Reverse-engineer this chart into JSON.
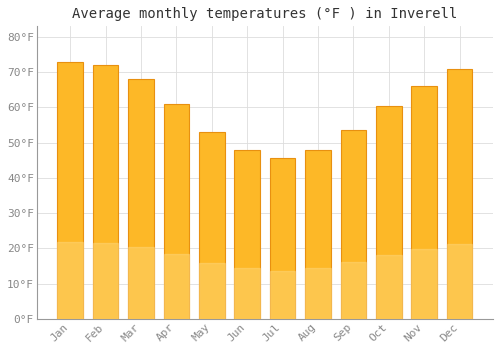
{
  "title": "Average monthly temperatures (°F ) in Inverell",
  "months": [
    "Jan",
    "Feb",
    "Mar",
    "Apr",
    "May",
    "Jun",
    "Jul",
    "Aug",
    "Sep",
    "Oct",
    "Nov",
    "Dec"
  ],
  "values": [
    73,
    72,
    68,
    61,
    53,
    48,
    45.5,
    48,
    53.5,
    60.5,
    66,
    71
  ],
  "bar_color": "#FDB827",
  "bar_edge_color": "#E89010",
  "ylim": [
    0,
    83
  ],
  "yticks": [
    0,
    10,
    20,
    30,
    40,
    50,
    60,
    70,
    80
  ],
  "ytick_labels": [
    "0°F",
    "10°F",
    "20°F",
    "30°F",
    "40°F",
    "50°F",
    "60°F",
    "70°F",
    "80°F"
  ],
  "background_color": "#FFFFFF",
  "grid_color": "#DDDDDD",
  "title_fontsize": 10,
  "tick_fontsize": 8,
  "tick_color": "#888888",
  "label_rotation": 45,
  "bar_width": 0.72
}
